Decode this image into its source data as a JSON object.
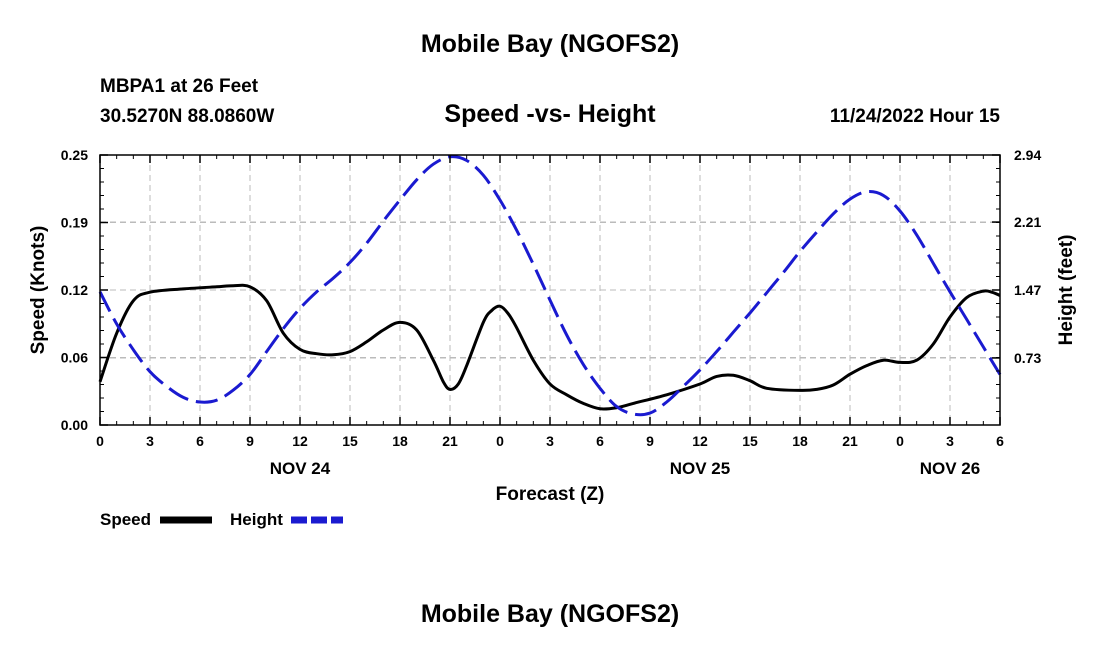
{
  "header": {
    "main_title": "Mobile Bay (NGOFS2)",
    "station": "MBPA1 at 26 Feet",
    "coords": "30.5270N  88.0860W",
    "chart_title": "Speed -vs- Height",
    "datetime": "11/24/2022 Hour 15"
  },
  "footer": {
    "title": "Mobile Bay (NGOFS2)"
  },
  "colors": {
    "speed": "#000000",
    "height": "#1a1ad0",
    "grid": "#bbbbbb"
  },
  "chart_data": {
    "type": "line",
    "title": "Speed -vs- Height",
    "xlabel": "Forecast (Z)",
    "ylabel": "Speed (Knots)",
    "y2label": "Height (feet)",
    "xlim_hours": [
      0,
      54
    ],
    "ylim": [
      0,
      0.25
    ],
    "y2lim": [
      0,
      2.94
    ],
    "y_ticks": [
      "0.00",
      "0.06",
      "0.12",
      "0.19",
      "0.25"
    ],
    "y_tick_values": [
      0,
      0.0625,
      0.125,
      0.1875,
      0.25
    ],
    "y2_ticks": [
      "0.73",
      "1.47",
      "2.21",
      "2.94"
    ],
    "y2_tick_values": [
      0.73,
      1.47,
      2.21,
      2.94
    ],
    "x_tick_labels": [
      "0",
      "3",
      "6",
      "9",
      "12",
      "15",
      "18",
      "21",
      "0",
      "3",
      "6",
      "9",
      "12",
      "15",
      "18",
      "21",
      "0",
      "3",
      "6"
    ],
    "date_labels": [
      {
        "label": "NOV 24",
        "hour": 12
      },
      {
        "label": "NOV 25",
        "hour": 36
      },
      {
        "label": "NOV 26",
        "hour": 51
      }
    ],
    "grid": true,
    "series": [
      {
        "name": "Speed",
        "axis": "left",
        "style": "solid",
        "points": [
          [
            0,
            0.04
          ],
          [
            1,
            0.085
          ],
          [
            2,
            0.115
          ],
          [
            3,
            0.123
          ],
          [
            5,
            0.126
          ],
          [
            7,
            0.128
          ],
          [
            8,
            0.129
          ],
          [
            9,
            0.128
          ],
          [
            10,
            0.115
          ],
          [
            11,
            0.085
          ],
          [
            12,
            0.07
          ],
          [
            13,
            0.066
          ],
          [
            14,
            0.065
          ],
          [
            15,
            0.068
          ],
          [
            16,
            0.077
          ],
          [
            17,
            0.088
          ],
          [
            18,
            0.095
          ],
          [
            19,
            0.088
          ],
          [
            20,
            0.06
          ],
          [
            20.6,
            0.04
          ],
          [
            21,
            0.033
          ],
          [
            21.5,
            0.038
          ],
          [
            22,
            0.055
          ],
          [
            23,
            0.095
          ],
          [
            23.5,
            0.106
          ],
          [
            24,
            0.11
          ],
          [
            24.5,
            0.103
          ],
          [
            25,
            0.09
          ],
          [
            26,
            0.06
          ],
          [
            27,
            0.038
          ],
          [
            28,
            0.028
          ],
          [
            29,
            0.02
          ],
          [
            30,
            0.015
          ],
          [
            31,
            0.016
          ],
          [
            32,
            0.02
          ],
          [
            34,
            0.028
          ],
          [
            36,
            0.038
          ],
          [
            37,
            0.045
          ],
          [
            38,
            0.046
          ],
          [
            39,
            0.041
          ],
          [
            40,
            0.034
          ],
          [
            42,
            0.032
          ],
          [
            43,
            0.033
          ],
          [
            44,
            0.037
          ],
          [
            45,
            0.047
          ],
          [
            46,
            0.055
          ],
          [
            47,
            0.06
          ],
          [
            48,
            0.058
          ],
          [
            49,
            0.06
          ],
          [
            50,
            0.075
          ],
          [
            51,
            0.1
          ],
          [
            52,
            0.118
          ],
          [
            53,
            0.124
          ],
          [
            53.5,
            0.123
          ],
          [
            54,
            0.12
          ]
        ]
      },
      {
        "name": "Height",
        "axis": "right",
        "style": "dashed",
        "points": [
          [
            0,
            1.45
          ],
          [
            1,
            1.1
          ],
          [
            2,
            0.82
          ],
          [
            3,
            0.58
          ],
          [
            4,
            0.42
          ],
          [
            5,
            0.3
          ],
          [
            6,
            0.25
          ],
          [
            7,
            0.27
          ],
          [
            8,
            0.38
          ],
          [
            9,
            0.55
          ],
          [
            10,
            0.8
          ],
          [
            11,
            1.05
          ],
          [
            12,
            1.27
          ],
          [
            13,
            1.45
          ],
          [
            14,
            1.6
          ],
          [
            15,
            1.77
          ],
          [
            16,
            1.98
          ],
          [
            17,
            2.22
          ],
          [
            18,
            2.45
          ],
          [
            19,
            2.67
          ],
          [
            20,
            2.84
          ],
          [
            21,
            2.92
          ],
          [
            22,
            2.88
          ],
          [
            23,
            2.72
          ],
          [
            24,
            2.45
          ],
          [
            25,
            2.12
          ],
          [
            26,
            1.75
          ],
          [
            27,
            1.36
          ],
          [
            28,
            0.98
          ],
          [
            29,
            0.66
          ],
          [
            30,
            0.4
          ],
          [
            31,
            0.2
          ],
          [
            32,
            0.12
          ],
          [
            33,
            0.13
          ],
          [
            34,
            0.25
          ],
          [
            35,
            0.42
          ],
          [
            36,
            0.6
          ],
          [
            37,
            0.8
          ],
          [
            38,
            1.01
          ],
          [
            39,
            1.22
          ],
          [
            40,
            1.44
          ],
          [
            41,
            1.66
          ],
          [
            42,
            1.89
          ],
          [
            43,
            2.1
          ],
          [
            44,
            2.3
          ],
          [
            45,
            2.46
          ],
          [
            46,
            2.54
          ],
          [
            47,
            2.5
          ],
          [
            48,
            2.33
          ],
          [
            49,
            2.07
          ],
          [
            50,
            1.76
          ],
          [
            51,
            1.45
          ],
          [
            52,
            1.15
          ],
          [
            53,
            0.85
          ],
          [
            54,
            0.55
          ]
        ]
      }
    ]
  },
  "legend": {
    "speed_label": "Speed",
    "height_label": "Height"
  }
}
